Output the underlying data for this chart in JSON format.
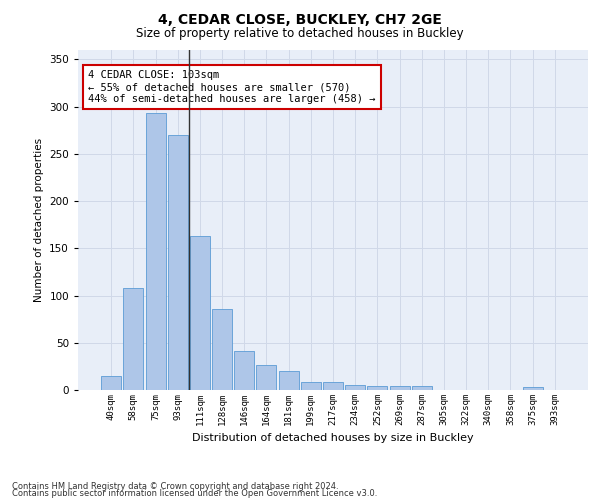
{
  "title1": "4, CEDAR CLOSE, BUCKLEY, CH7 2GE",
  "title2": "Size of property relative to detached houses in Buckley",
  "xlabel": "Distribution of detached houses by size in Buckley",
  "ylabel": "Number of detached properties",
  "categories": [
    "40sqm",
    "58sqm",
    "75sqm",
    "93sqm",
    "111sqm",
    "128sqm",
    "146sqm",
    "164sqm",
    "181sqm",
    "199sqm",
    "217sqm",
    "234sqm",
    "252sqm",
    "269sqm",
    "287sqm",
    "305sqm",
    "322sqm",
    "340sqm",
    "358sqm",
    "375sqm",
    "393sqm"
  ],
  "values": [
    15,
    108,
    293,
    270,
    163,
    86,
    41,
    27,
    20,
    8,
    8,
    5,
    4,
    4,
    4,
    0,
    0,
    0,
    0,
    3,
    0
  ],
  "bar_color": "#aec6e8",
  "bar_edge_color": "#5b9bd5",
  "highlight_line_color": "#333333",
  "annotation_text": "4 CEDAR CLOSE: 103sqm\n← 55% of detached houses are smaller (570)\n44% of semi-detached houses are larger (458) →",
  "annotation_box_color": "#ffffff",
  "annotation_box_edge_color": "#cc0000",
  "ylim": [
    0,
    360
  ],
  "yticks": [
    0,
    50,
    100,
    150,
    200,
    250,
    300,
    350
  ],
  "grid_color": "#d0d8e8",
  "bg_color": "#e8eef8",
  "footnote1": "Contains HM Land Registry data © Crown copyright and database right 2024.",
  "footnote2": "Contains public sector information licensed under the Open Government Licence v3.0."
}
